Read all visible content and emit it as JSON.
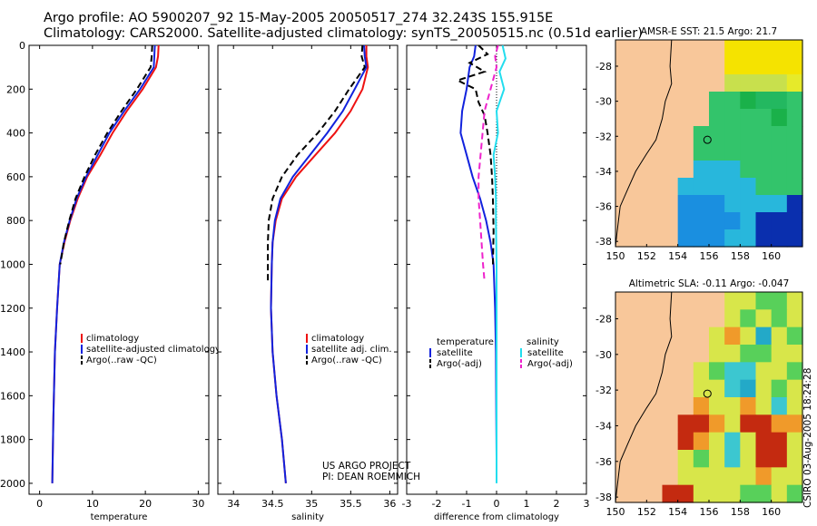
{
  "header": {
    "line1": "Argo profile: AO 5900207_92 15-May-2005 20050517_274 32.243S 155.915E",
    "line2": "Climatology: CARS2000. Satellite-adjusted climatology: synTS_20050515.nc (0.51d earlier)"
  },
  "credit": "CSIRO 03-Aug-2005 18:24:28",
  "project": {
    "line1": "US ARGO PROJECT",
    "line2": "PI: DEAN ROEMMICH"
  },
  "colors": {
    "climatology": "#ee1111",
    "satellite": "#1122dd",
    "argo": "#000000",
    "sal_sat": "#22ddee",
    "sal_argo": "#ee22cc",
    "land": "#f8c79a"
  },
  "chart_data": [
    {
      "type": "line",
      "xlabel": "temperature",
      "xlim": [
        -2,
        32
      ],
      "ylim": [
        0,
        2050
      ],
      "xticks": [
        "0",
        "10",
        "20",
        "30"
      ],
      "xtick_values": [
        0,
        10,
        20,
        30
      ],
      "yticks": [
        "0",
        "200",
        "400",
        "600",
        "800",
        "1000",
        "1200",
        "1400",
        "1600",
        "1800",
        "2000"
      ],
      "ytick_values": [
        0,
        200,
        400,
        600,
        800,
        1000,
        1200,
        1400,
        1600,
        1800,
        2000
      ],
      "legend": [
        "climatology",
        "satellite-adjusted climatology",
        "Argo(..raw -QC)"
      ],
      "series": [
        {
          "name": "climatology",
          "color": "#ee1111",
          "dash": false,
          "x": [
            22.5,
            22.4,
            22.0,
            19.5,
            16.5,
            13.8,
            11.5,
            9.0,
            7.2,
            5.8,
            4.7,
            3.8,
            3.3,
            2.9,
            2.6,
            2.4
          ],
          "y": [
            0,
            50,
            100,
            200,
            300,
            400,
            500,
            600,
            700,
            800,
            900,
            1000,
            1200,
            1400,
            1700,
            2000
          ]
        },
        {
          "name": "satellite-adjusted climatology",
          "color": "#1122dd",
          "dash": false,
          "x": [
            21.8,
            21.7,
            21.6,
            19.0,
            16.0,
            13.2,
            11.0,
            8.8,
            7.0,
            5.7,
            4.6,
            3.8,
            3.3,
            2.9,
            2.6,
            2.4
          ],
          "y": [
            0,
            50,
            100,
            200,
            300,
            400,
            500,
            600,
            700,
            800,
            900,
            1000,
            1200,
            1400,
            1700,
            2000
          ]
        },
        {
          "name": "Argo(..raw -QC)",
          "color": "#000000",
          "dash": true,
          "x": [
            21.3,
            21.2,
            21.0,
            18.4,
            15.5,
            12.8,
            10.5,
            8.5,
            6.8,
            5.6,
            4.6,
            3.9
          ],
          "y": [
            0,
            50,
            100,
            200,
            300,
            400,
            500,
            600,
            700,
            800,
            900,
            1000
          ]
        }
      ]
    },
    {
      "type": "line",
      "xlabel": "salinity",
      "xlim": [
        33.8,
        36.1
      ],
      "ylim": [
        0,
        2050
      ],
      "xticks": [
        "34",
        "34.5",
        "35",
        "35.5",
        "36"
      ],
      "xtick_values": [
        34,
        34.5,
        35,
        35.5,
        36
      ],
      "legend": [
        "climatology",
        "satellite adj. clim.",
        "Argo(..raw -QC)"
      ],
      "series": [
        {
          "name": "climatology",
          "color": "#ee1111",
          "dash": false,
          "x": [
            35.7,
            35.7,
            35.72,
            35.65,
            35.5,
            35.3,
            35.05,
            34.8,
            34.62,
            34.54,
            34.5,
            34.49,
            34.48,
            34.5,
            34.55,
            34.62,
            34.67
          ],
          "y": [
            0,
            50,
            100,
            200,
            300,
            400,
            500,
            600,
            700,
            800,
            900,
            1000,
            1200,
            1400,
            1600,
            1800,
            2000
          ]
        },
        {
          "name": "satellite adj. clim.",
          "color": "#1122dd",
          "dash": false,
          "x": [
            35.67,
            35.68,
            35.7,
            35.55,
            35.4,
            35.2,
            34.98,
            34.76,
            34.6,
            34.53,
            34.5,
            34.49,
            34.48,
            34.5,
            34.55,
            34.62,
            34.67
          ],
          "y": [
            0,
            50,
            100,
            200,
            300,
            400,
            500,
            600,
            700,
            800,
            900,
            1000,
            1200,
            1400,
            1600,
            1800,
            2000
          ]
        },
        {
          "name": "Argo(..raw -QC)",
          "color": "#000000",
          "dash": true,
          "x": [
            35.65,
            35.64,
            35.68,
            35.48,
            35.3,
            35.08,
            34.82,
            34.62,
            34.5,
            34.45,
            34.44,
            34.44
          ],
          "y": [
            0,
            50,
            100,
            200,
            300,
            400,
            500,
            600,
            700,
            800,
            900,
            1080
          ]
        }
      ]
    },
    {
      "type": "line",
      "xlabel": "difference from climatology",
      "xlim": [
        -3,
        3
      ],
      "ylim": [
        0,
        2050
      ],
      "xticks": [
        "-3",
        "-2",
        "-1",
        "0",
        "1",
        "2",
        "3"
      ],
      "xtick_values": [
        -3,
        -2,
        -1,
        0,
        1,
        2,
        3
      ],
      "legend_temperature": {
        "title": "temperature",
        "items": [
          "satellite",
          "Argo(-adj)"
        ]
      },
      "legend_salinity": {
        "title": "salinity",
        "items": [
          "satellite",
          "Argo(-adj)"
        ]
      },
      "series": [
        {
          "name": "temperature satellite",
          "color": "#1122dd",
          "dash": false,
          "x": [
            -0.7,
            -0.75,
            -0.9,
            -1.0,
            -1.15,
            -1.2,
            -1.0,
            -0.8,
            -0.55,
            -0.35,
            -0.2,
            -0.1,
            -0.05,
            -0.02,
            -0.01,
            0.0
          ],
          "y": [
            0,
            50,
            100,
            200,
            300,
            400,
            500,
            600,
            700,
            800,
            900,
            1000,
            1200,
            1400,
            1700,
            1880
          ]
        },
        {
          "name": "temperature Argo(-adj)",
          "color": "#000000",
          "dash": true,
          "x": [
            -0.6,
            -0.3,
            -0.9,
            -0.4,
            -1.3,
            -0.7,
            -0.6,
            -0.4,
            -0.3,
            -0.2,
            -0.15,
            -0.12,
            -0.1,
            -0.12
          ],
          "y": [
            0,
            40,
            80,
            120,
            160,
            200,
            260,
            320,
            400,
            500,
            600,
            700,
            850,
            1000
          ]
        },
        {
          "name": "salinity satellite",
          "color": "#22ddee",
          "dash": false,
          "x": [
            0.2,
            0.3,
            0.1,
            0.25,
            0.0,
            0.05,
            -0.1,
            -0.05,
            -0.02,
            -0.02,
            0.0,
            0.0,
            0.0,
            0.0
          ],
          "y": [
            0,
            60,
            120,
            200,
            300,
            400,
            500,
            600,
            700,
            800,
            1000,
            1400,
            1800,
            2000
          ]
        },
        {
          "name": "salinity Argo(-adj)",
          "color": "#ee22cc",
          "dash": true,
          "x": [
            0.05,
            -0.05,
            0.0,
            -0.2,
            -0.4,
            -0.5,
            -0.6,
            -0.6,
            -0.55,
            -0.5,
            -0.45,
            -0.4
          ],
          "y": [
            0,
            50,
            100,
            200,
            300,
            450,
            600,
            700,
            800,
            900,
            1000,
            1080
          ]
        }
      ]
    }
  ],
  "maps": [
    {
      "title": "AMSR-E SST: 21.5 Argo: 21.7",
      "xticks": [
        "150",
        "152",
        "154",
        "156",
        "158",
        "160"
      ],
      "xtick_values": [
        150,
        152,
        154,
        156,
        158,
        160
      ],
      "yticks": [
        "-28",
        "-30",
        "-32",
        "-34",
        "-36",
        "-38"
      ],
      "ytick_values": [
        -28,
        -30,
        -32,
        -34,
        -36,
        -38
      ],
      "xlim": [
        150,
        162
      ],
      "ylim": [
        -38.3,
        -26.5
      ],
      "marker": {
        "lon": 155.9,
        "lat": -32.2
      },
      "field": [
        "LLLLLLLAAAAA",
        "LLLLLLLAAAAA",
        "LLLLLLLBBBBC",
        "LLLLLLEEFGGE",
        "LLLLLLEEEEFE",
        "LLLLLEEEEEEE",
        "LLLLLEEEEEEE",
        "LLLLLMMMEEEE",
        "LLLLMMMMMEEE",
        "LLLLNNNMMMMP",
        "LLLLNNNNMPPP",
        "LLLLNNNMMPPP"
      ],
      "palette": {
        "A": "#f5e300",
        "B": "#c8e04d",
        "C": "#e6ea2a",
        "E": "#33c46b",
        "F": "#1ab14a",
        "G": "#23b860",
        "M": "#28b7dc",
        "N": "#1a8fe0",
        "P": "#0a2fae"
      }
    },
    {
      "title": "Altimetric SLA: -0.11 Argo: -0.047",
      "xticks": [
        "150",
        "152",
        "154",
        "156",
        "158",
        "160"
      ],
      "xtick_values": [
        150,
        152,
        154,
        156,
        158,
        160
      ],
      "yticks": [
        "-28",
        "-30",
        "-32",
        "-34",
        "-36",
        "-38"
      ],
      "ytick_values": [
        -28,
        -30,
        -32,
        -34,
        -36,
        -38
      ],
      "xlim": [
        150,
        162
      ],
      "ylim": [
        -38.3,
        -26.5
      ],
      "marker": {
        "lon": 155.9,
        "lat": -32.2
      },
      "field": [
        "LLLLLLLYYGGY",
        "LLLLLLLYGYGY",
        "LLLLLLYOYTYG",
        "LLLLLLYYGGYY",
        "LLLLLYGCCYYG",
        "LLLLLYYCTYGY",
        "LLLLLOYYOYCY",
        "LLLLRROYRROO",
        "LLLLROYCYRRY",
        "LLLLYGYCYRRY",
        "LLLLYYYYYOYY",
        "LLLRRYYYGGYG"
      ],
      "palette": {
        "Y": "#d8e64a",
        "G": "#58d05a",
        "O": "#f09a2a",
        "R": "#c42a10",
        "C": "#3cc7d0",
        "T": "#23a9c8"
      }
    }
  ]
}
